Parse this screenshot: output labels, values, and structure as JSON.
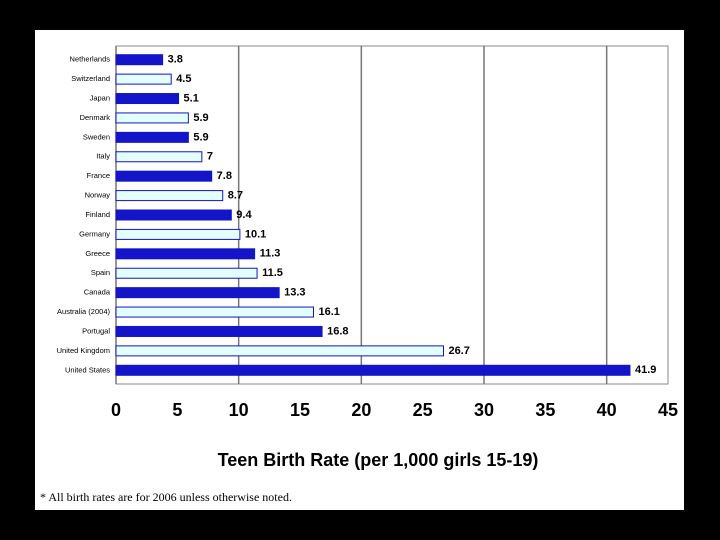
{
  "chart_data": {
    "type": "hbar",
    "categories": [
      "Netherlands",
      "Switzerland",
      "Japan",
      "Denmark",
      "Sweden",
      "Italy",
      "France",
      "Norway",
      "Finland",
      "Germany",
      "Greece",
      "Spain",
      "Canada",
      "Australia (2004)",
      "Portugal",
      "United Kingdom",
      "United States"
    ],
    "values": [
      3.8,
      4.5,
      5.1,
      5.9,
      5.9,
      7,
      7.8,
      8.7,
      9.4,
      10.1,
      11.3,
      11.5,
      13.3,
      16.1,
      16.8,
      26.7,
      41.9
    ],
    "colors": [
      "#1414c8",
      "#e4ffff",
      "#1414c8",
      "#e4ffff",
      "#1414c8",
      "#e4ffff",
      "#1414c8",
      "#e4ffff",
      "#1414c8",
      "#e4ffff",
      "#1414c8",
      "#e4ffff",
      "#1414c8",
      "#e4ffff",
      "#1414c8",
      "#e4ffff",
      "#1414c8"
    ],
    "xlabel": "Teen Birth Rate (per 1,000 girls 15-19)",
    "xlim": [
      0,
      45
    ],
    "xticks": [
      0,
      5,
      10,
      15,
      20,
      25,
      30,
      35,
      40,
      45
    ],
    "grid": true,
    "footnote": "* All birth rates are for 2006 unless otherwise noted."
  }
}
